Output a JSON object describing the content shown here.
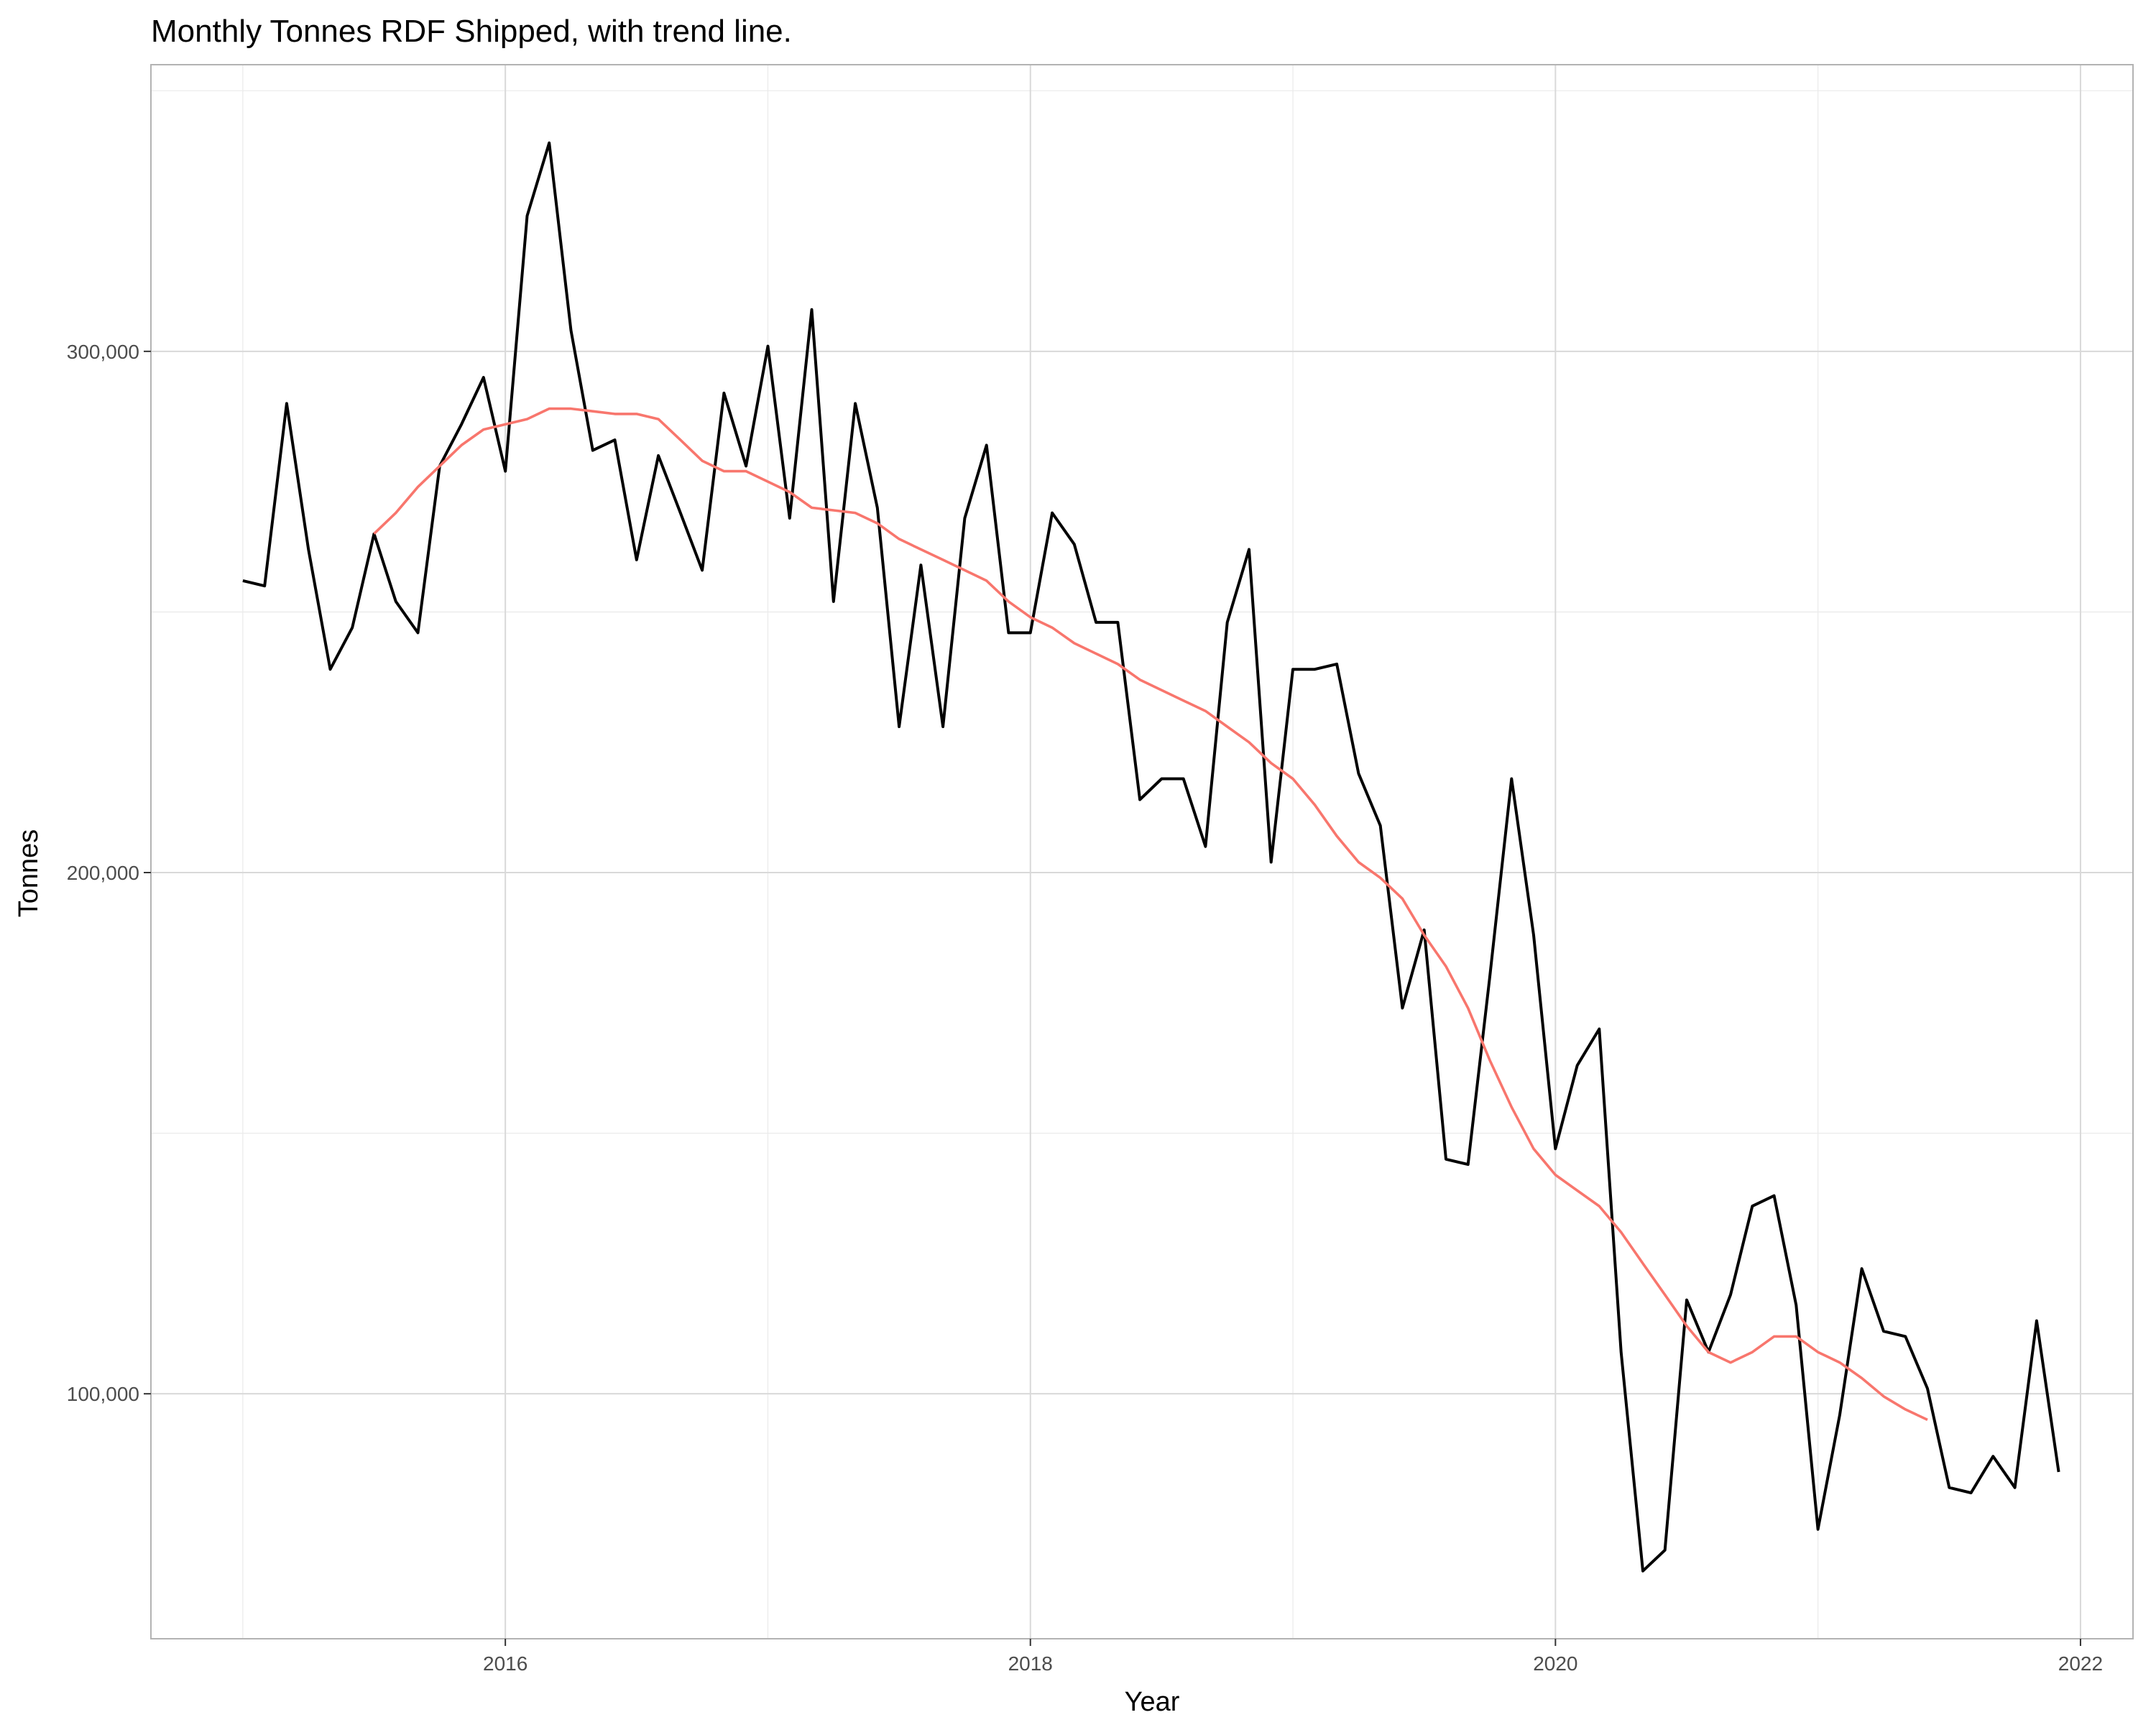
{
  "chart_data": {
    "type": "line",
    "title": "Monthly Tonnes RDF Shipped, with trend line.",
    "xlabel": "Year",
    "ylabel": "Tonnes",
    "x_ticks": [
      2016,
      2018,
      2020,
      2022
    ],
    "x_tick_labels": [
      "2016",
      "2018",
      "2020",
      "2022"
    ],
    "y_ticks": [
      100000,
      200000,
      300000
    ],
    "y_tick_labels": [
      "100,000",
      "200,000",
      "300,000"
    ],
    "xlim": [
      2014.65,
      2022.2
    ],
    "ylim": [
      53000,
      355000
    ],
    "grid": true,
    "legend": "none",
    "series": [
      {
        "color": "#000000",
        "x": [
          2015.0,
          2015.083,
          2015.167,
          2015.25,
          2015.333,
          2015.417,
          2015.5,
          2015.583,
          2015.667,
          2015.75,
          2015.833,
          2015.917,
          2016.0,
          2016.083,
          2016.167,
          2016.25,
          2016.333,
          2016.417,
          2016.5,
          2016.583,
          2016.667,
          2016.75,
          2016.833,
          2016.917,
          2017.0,
          2017.083,
          2017.167,
          2017.25,
          2017.333,
          2017.417,
          2017.5,
          2017.583,
          2017.667,
          2017.75,
          2017.833,
          2017.917,
          2018.0,
          2018.083,
          2018.167,
          2018.25,
          2018.333,
          2018.417,
          2018.5,
          2018.583,
          2018.667,
          2018.75,
          2018.833,
          2018.917,
          2019.0,
          2019.083,
          2019.167,
          2019.25,
          2019.333,
          2019.417,
          2019.5,
          2019.583,
          2019.667,
          2019.75,
          2019.833,
          2019.917,
          2020.0,
          2020.083,
          2020.167,
          2020.25,
          2020.333,
          2020.417,
          2020.5,
          2020.583,
          2020.667,
          2020.75,
          2020.833,
          2020.917,
          2021.0,
          2021.083,
          2021.167,
          2021.25,
          2021.333,
          2021.417,
          2021.5,
          2021.583,
          2021.667,
          2021.75,
          2021.833,
          2021.917
        ],
        "y": [
          256000,
          255000,
          290000,
          262000,
          239000,
          247000,
          265000,
          252000,
          246000,
          278000,
          286000,
          295000,
          277000,
          326000,
          340000,
          304000,
          281000,
          283000,
          260000,
          280000,
          269000,
          258000,
          292000,
          278000,
          301000,
          268000,
          308000,
          252000,
          290000,
          270000,
          228000,
          259000,
          228000,
          268000,
          282000,
          246000,
          246000,
          269000,
          263000,
          248000,
          248000,
          214000,
          218000,
          218000,
          205000,
          248000,
          262000,
          202000,
          239000,
          239000,
          240000,
          219000,
          209000,
          174000,
          189000,
          145000,
          144000,
          180000,
          218000,
          188000,
          147000,
          163000,
          170000,
          108000,
          66000,
          70000,
          118000,
          108000,
          119000,
          136000,
          138000,
          117000,
          74000,
          96000,
          124000,
          112000,
          111000,
          101000,
          82000,
          81000,
          88000,
          82000,
          114000,
          85000
        ]
      },
      {
        "color": "#F8766D",
        "x": [
          2015.5,
          2015.583,
          2015.667,
          2015.75,
          2015.833,
          2015.917,
          2016.0,
          2016.083,
          2016.167,
          2016.25,
          2016.333,
          2016.417,
          2016.5,
          2016.583,
          2016.667,
          2016.75,
          2016.833,
          2016.917,
          2017.0,
          2017.083,
          2017.167,
          2017.25,
          2017.333,
          2017.417,
          2017.5,
          2017.583,
          2017.667,
          2017.75,
          2017.833,
          2017.917,
          2018.0,
          2018.083,
          2018.167,
          2018.25,
          2018.333,
          2018.417,
          2018.5,
          2018.583,
          2018.667,
          2018.75,
          2018.833,
          2018.917,
          2019.0,
          2019.083,
          2019.167,
          2019.25,
          2019.333,
          2019.417,
          2019.5,
          2019.583,
          2019.667,
          2019.75,
          2019.833,
          2019.917,
          2020.0,
          2020.083,
          2020.167,
          2020.25,
          2020.333,
          2020.417,
          2020.5,
          2020.583,
          2020.667,
          2020.75,
          2020.833,
          2020.917,
          2021.0,
          2021.083,
          2021.167,
          2021.25,
          2021.333,
          2021.417
        ],
        "y": [
          265000,
          269000,
          274000,
          278000,
          282000,
          285000,
          286000,
          287000,
          289000,
          289000,
          288500,
          288000,
          288000,
          287000,
          283000,
          279000,
          277000,
          277000,
          275000,
          273000,
          270000,
          269500,
          269000,
          267000,
          264000,
          262000,
          260000,
          258000,
          256000,
          252000,
          249000,
          247000,
          244000,
          242000,
          240000,
          237000,
          235000,
          233000,
          231000,
          228000,
          225000,
          221000,
          218000,
          213000,
          207000,
          202000,
          199000,
          195000,
          188000,
          182000,
          174000,
          164000,
          155000,
          147000,
          142000,
          139000,
          136000,
          131000,
          125000,
          119000,
          113000,
          108000,
          106000,
          108000,
          111000,
          111000,
          108000,
          106000,
          103000,
          99500,
          97000,
          95000
        ]
      }
    ]
  }
}
